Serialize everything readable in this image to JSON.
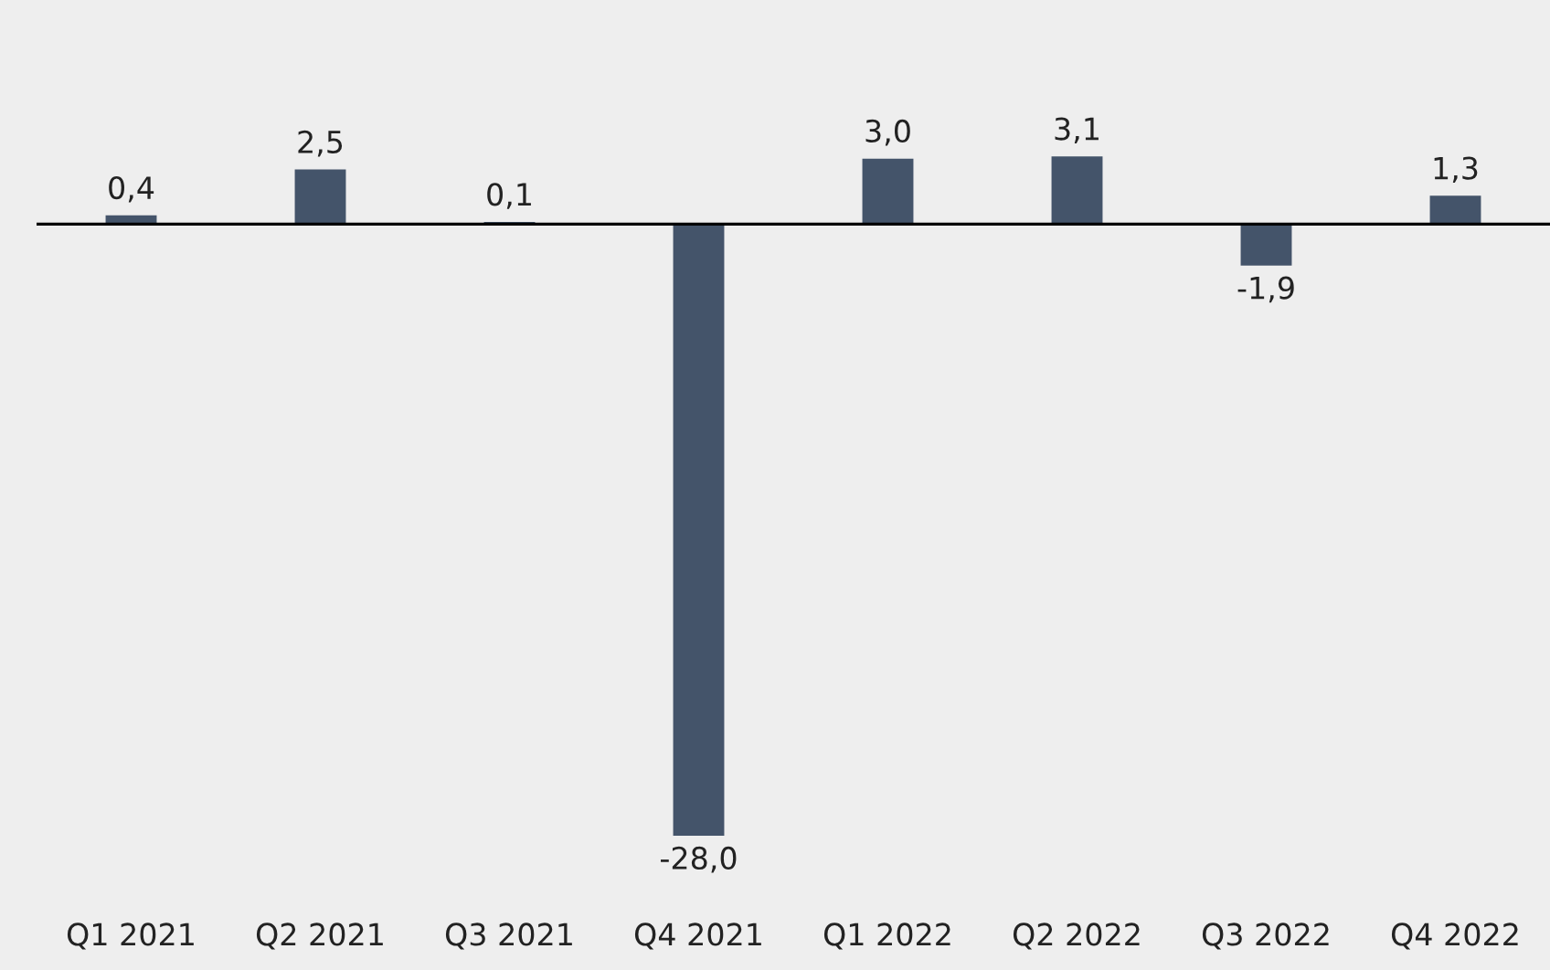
{
  "chart_data": {
    "type": "bar",
    "categories": [
      "Q1 2021",
      "Q2 2021",
      "Q3 2021",
      "Q4 2021",
      "Q1 2022",
      "Q2 2022",
      "Q3 2022",
      "Q4 2022"
    ],
    "values": [
      0.4,
      2.5,
      0.1,
      -28.0,
      3.0,
      3.1,
      -1.9,
      1.3
    ],
    "value_labels": [
      "0,4",
      "2,5",
      "0,1",
      "-28,0",
      "3,0",
      "3,1",
      "-1,9",
      "1,3"
    ],
    "color": "#44546a",
    "grid": false,
    "legend": false
  }
}
